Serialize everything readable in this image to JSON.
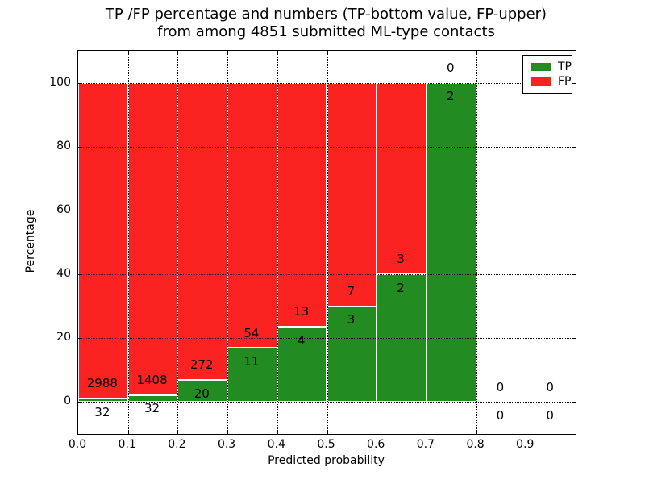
{
  "chart_data": {
    "type": "bar",
    "stacked": true,
    "title_line1": "TP /FP percentage and numbers (TP-bottom value, FP-upper)",
    "title_line2": "from among 4851 submitted ML-type contacts",
    "xlabel": "Predicted probability",
    "ylabel": "Percentage",
    "xlim": [
      0.0,
      1.0
    ],
    "ylim": [
      -10,
      110
    ],
    "x_tick_labels": [
      "0.0",
      "0.1",
      "0.2",
      "0.3",
      "0.4",
      "0.5",
      "0.6",
      "0.7",
      "0.8",
      "0.9"
    ],
    "y_tick_values": [
      0,
      20,
      40,
      60,
      80,
      100
    ],
    "grid_style": "dotted",
    "total_submitted": 4851,
    "colors": {
      "tp": "#228B22",
      "fp": "#fb2222",
      "frame": "#000000",
      "background": "#ffffff",
      "text": "#000000"
    },
    "legend": {
      "position": "upper-right",
      "entries": [
        {
          "label": "TP",
          "color": "#228B22"
        },
        {
          "label": "FP",
          "color": "#fb2222"
        }
      ]
    },
    "bins": [
      {
        "x_start": 0.0,
        "x_end": 0.1,
        "tp": 32,
        "fp": 2988,
        "tp_pct": 1.06
      },
      {
        "x_start": 0.1,
        "x_end": 0.2,
        "tp": 32,
        "fp": 1408,
        "tp_pct": 2.22
      },
      {
        "x_start": 0.2,
        "x_end": 0.3,
        "tp": 20,
        "fp": 272,
        "tp_pct": 6.85
      },
      {
        "x_start": 0.3,
        "x_end": 0.4,
        "tp": 11,
        "fp": 54,
        "tp_pct": 16.92
      },
      {
        "x_start": 0.4,
        "x_end": 0.5,
        "tp": 4,
        "fp": 13,
        "tp_pct": 23.53
      },
      {
        "x_start": 0.5,
        "x_end": 0.6,
        "tp": 3,
        "fp": 7,
        "tp_pct": 30.0
      },
      {
        "x_start": 0.6,
        "x_end": 0.7,
        "tp": 2,
        "fp": 3,
        "tp_pct": 40.0
      },
      {
        "x_start": 0.7,
        "x_end": 0.8,
        "tp": 2,
        "fp": 0,
        "tp_pct": 100.0
      },
      {
        "x_start": 0.8,
        "x_end": 0.9,
        "tp": 0,
        "fp": 0,
        "tp_pct": null
      },
      {
        "x_start": 0.9,
        "x_end": 1.0,
        "tp": 0,
        "fp": 0,
        "tp_pct": null
      }
    ]
  }
}
